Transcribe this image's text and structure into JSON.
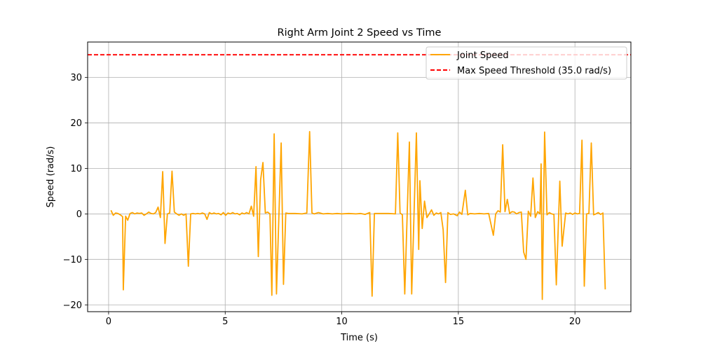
{
  "chart_data": {
    "type": "line",
    "title": "Right Arm Joint 2 Speed vs Time",
    "xlabel": "Time (s)",
    "ylabel": "Speed (rad/s)",
    "xlim": [
      -0.9,
      22.4
    ],
    "ylim": [
      -21.5,
      37.8
    ],
    "xticks": [
      0,
      5,
      10,
      15,
      20
    ],
    "yticks": [
      -20,
      -10,
      0,
      10,
      20,
      30
    ],
    "grid": true,
    "legend_position": "top-right",
    "threshold": {
      "name": "Max Speed Threshold (35.0 rad/s)",
      "value": 35.0,
      "color": "#ff0000",
      "style": "dashed"
    },
    "series": [
      {
        "name": "Joint Speed",
        "color": "#ffa500",
        "points": [
          [
            0.1,
            0.8
          ],
          [
            0.2,
            -0.3
          ],
          [
            0.3,
            0.2
          ],
          [
            0.4,
            0.1
          ],
          [
            0.5,
            -0.2
          ],
          [
            0.6,
            -0.6
          ],
          [
            0.63,
            -16.7
          ],
          [
            0.73,
            -0.5
          ],
          [
            0.82,
            -1.4
          ],
          [
            0.92,
            0.1
          ],
          [
            1.02,
            0.3
          ],
          [
            1.12,
            0.0
          ],
          [
            1.22,
            0.2
          ],
          [
            1.32,
            0.1
          ],
          [
            1.42,
            0.2
          ],
          [
            1.52,
            -0.3
          ],
          [
            1.62,
            0.0
          ],
          [
            1.72,
            0.4
          ],
          [
            1.82,
            0.1
          ],
          [
            1.92,
            0.0
          ],
          [
            2.02,
            0.3
          ],
          [
            2.12,
            1.5
          ],
          [
            2.22,
            -0.8
          ],
          [
            2.32,
            9.3
          ],
          [
            2.42,
            -6.5
          ],
          [
            2.52,
            0.0
          ],
          [
            2.62,
            0.2
          ],
          [
            2.72,
            9.4
          ],
          [
            2.82,
            0.4
          ],
          [
            2.92,
            0.0
          ],
          [
            3.02,
            -0.3
          ],
          [
            3.12,
            0.0
          ],
          [
            3.22,
            -0.3
          ],
          [
            3.32,
            0.0
          ],
          [
            3.42,
            -11.5
          ],
          [
            3.52,
            0.0
          ],
          [
            3.62,
            0.1
          ],
          [
            3.72,
            0.0
          ],
          [
            3.82,
            0.1
          ],
          [
            3.92,
            0.0
          ],
          [
            4.02,
            0.2
          ],
          [
            4.12,
            0.0
          ],
          [
            4.22,
            -1.2
          ],
          [
            4.32,
            0.3
          ],
          [
            4.42,
            0.0
          ],
          [
            4.52,
            0.2
          ],
          [
            4.62,
            0.0
          ],
          [
            4.72,
            0.1
          ],
          [
            4.82,
            -0.2
          ],
          [
            4.92,
            0.3
          ],
          [
            5.02,
            -0.3
          ],
          [
            5.12,
            0.2
          ],
          [
            5.22,
            0.0
          ],
          [
            5.32,
            0.3
          ],
          [
            5.42,
            0.0
          ],
          [
            5.52,
            0.1
          ],
          [
            5.62,
            -0.2
          ],
          [
            5.72,
            0.2
          ],
          [
            5.82,
            0.0
          ],
          [
            5.92,
            0.3
          ],
          [
            6.02,
            0.0
          ],
          [
            6.12,
            1.7
          ],
          [
            6.22,
            -0.5
          ],
          [
            6.32,
            10.4
          ],
          [
            6.42,
            -9.4
          ],
          [
            6.52,
            7.5
          ],
          [
            6.62,
            11.3
          ],
          [
            6.72,
            0.2
          ],
          [
            6.82,
            0.4
          ],
          [
            6.92,
            0.0
          ],
          [
            7.0,
            -17.9
          ],
          [
            7.1,
            17.6
          ],
          [
            7.2,
            -17.6
          ],
          [
            7.4,
            15.6
          ],
          [
            7.5,
            -15.5
          ],
          [
            7.6,
            0.2
          ],
          [
            7.7,
            0.1
          ],
          [
            8.0,
            0.1
          ],
          [
            8.3,
            0.0
          ],
          [
            8.5,
            0.2
          ],
          [
            8.62,
            18.1
          ],
          [
            8.72,
            0.2
          ],
          [
            8.82,
            0.0
          ],
          [
            9.0,
            0.3
          ],
          [
            9.2,
            0.0
          ],
          [
            9.4,
            0.1
          ],
          [
            9.6,
            0.0
          ],
          [
            9.8,
            0.1
          ],
          [
            10.0,
            0.0
          ],
          [
            10.3,
            0.1
          ],
          [
            10.6,
            0.0
          ],
          [
            10.8,
            0.1
          ],
          [
            11.0,
            -0.1
          ],
          [
            11.2,
            0.3
          ],
          [
            11.3,
            -18.1
          ],
          [
            11.4,
            0.1
          ],
          [
            11.7,
            0.1
          ],
          [
            12.0,
            0.1
          ],
          [
            12.3,
            0.0
          ],
          [
            12.4,
            17.8
          ],
          [
            12.5,
            0.2
          ],
          [
            12.6,
            -0.2
          ],
          [
            12.7,
            -17.6
          ],
          [
            12.9,
            15.8
          ],
          [
            13.0,
            -17.6
          ],
          [
            13.2,
            17.8
          ],
          [
            13.3,
            -7.8
          ],
          [
            13.35,
            7.3
          ],
          [
            13.45,
            -3.2
          ],
          [
            13.55,
            2.8
          ],
          [
            13.65,
            -0.8
          ],
          [
            13.75,
            0.0
          ],
          [
            13.85,
            0.9
          ],
          [
            13.95,
            -0.3
          ],
          [
            14.05,
            0.2
          ],
          [
            14.15,
            0.0
          ],
          [
            14.25,
            0.3
          ],
          [
            14.35,
            -3.5
          ],
          [
            14.45,
            -15.1
          ],
          [
            14.55,
            0.3
          ],
          [
            14.65,
            -0.1
          ],
          [
            14.8,
            0.0
          ],
          [
            14.95,
            -0.4
          ],
          [
            15.05,
            0.4
          ],
          [
            15.15,
            -0.1
          ],
          [
            15.3,
            5.2
          ],
          [
            15.4,
            -0.2
          ],
          [
            15.5,
            0.1
          ],
          [
            15.7,
            0.0
          ],
          [
            15.9,
            0.1
          ],
          [
            16.1,
            0.0
          ],
          [
            16.3,
            0.1
          ],
          [
            16.5,
            -4.7
          ],
          [
            16.6,
            0.0
          ],
          [
            16.7,
            0.7
          ],
          [
            16.8,
            0.4
          ],
          [
            16.9,
            15.2
          ],
          [
            17.0,
            0.5
          ],
          [
            17.1,
            3.2
          ],
          [
            17.2,
            0.1
          ],
          [
            17.3,
            0.5
          ],
          [
            17.4,
            0.4
          ],
          [
            17.5,
            0.0
          ],
          [
            17.6,
            0.3
          ],
          [
            17.7,
            0.4
          ],
          [
            17.8,
            -8.4
          ],
          [
            17.9,
            -10.0
          ],
          [
            18.0,
            0.6
          ],
          [
            18.1,
            -0.5
          ],
          [
            18.2,
            7.9
          ],
          [
            18.3,
            -0.8
          ],
          [
            18.4,
            0.5
          ],
          [
            18.5,
            0.0
          ],
          [
            18.55,
            11.0
          ],
          [
            18.6,
            -18.8
          ],
          [
            18.7,
            18.0
          ],
          [
            18.8,
            -0.2
          ],
          [
            18.9,
            0.3
          ],
          [
            19.0,
            0.0
          ],
          [
            19.1,
            -0.1
          ],
          [
            19.2,
            -15.6
          ],
          [
            19.35,
            7.2
          ],
          [
            19.45,
            -7.1
          ],
          [
            19.6,
            0.2
          ],
          [
            19.7,
            0.0
          ],
          [
            19.8,
            0.2
          ],
          [
            19.9,
            -0.1
          ],
          [
            20.0,
            0.2
          ],
          [
            20.1,
            0.0
          ],
          [
            20.2,
            0.1
          ],
          [
            20.3,
            16.2
          ],
          [
            20.4,
            -15.9
          ],
          [
            20.5,
            0.0
          ],
          [
            20.6,
            0.1
          ],
          [
            20.7,
            15.6
          ],
          [
            20.8,
            -0.2
          ],
          [
            20.9,
            0.0
          ],
          [
            21.0,
            0.3
          ],
          [
            21.1,
            -0.1
          ],
          [
            21.2,
            0.2
          ],
          [
            21.3,
            -16.6
          ]
        ]
      }
    ]
  }
}
